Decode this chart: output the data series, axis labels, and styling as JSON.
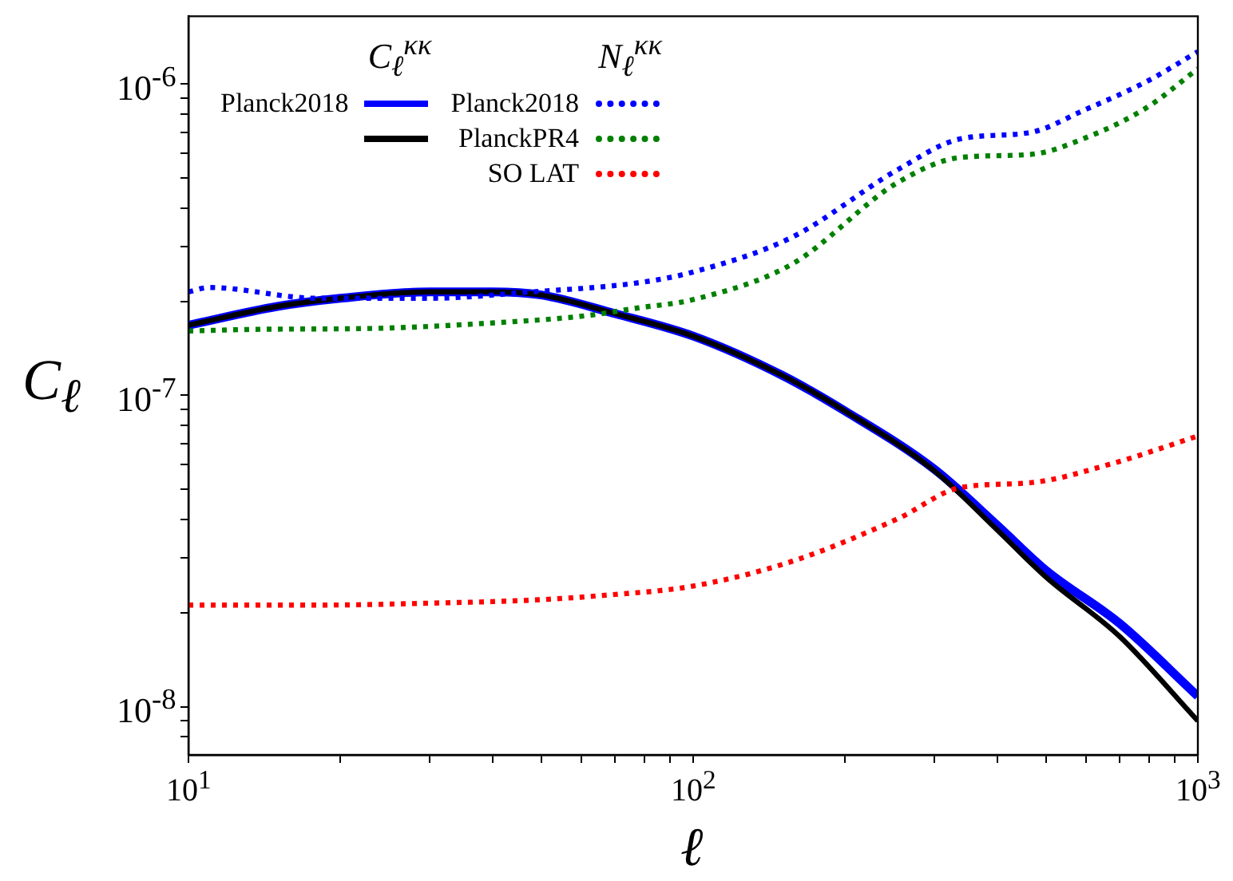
{
  "chart_data": {
    "type": "line",
    "xlabel": "ℓ",
    "ylabel": "C$_{ℓ}$",
    "log": "xy",
    "grid": false,
    "legend": "top left",
    "marker": "none",
    "annotations": [
      "C$_{ℓ}$$^{κκ}$",
      "N$_{ℓ}$$^{κκ}$"
    ],
    "xlim": [
      10,
      1000
    ],
    "ylim": [
      7e-09,
      1.65e-06
    ],
    "xticks": [
      {
        "value": 10,
        "label": "10$^{1}$"
      },
      {
        "value": 20,
        "label": null
      },
      {
        "value": 30,
        "label": null
      },
      {
        "value": 40,
        "label": null
      },
      {
        "value": 50,
        "label": null
      },
      {
        "value": 60,
        "label": null
      },
      {
        "value": 70,
        "label": null
      },
      {
        "value": 80,
        "label": null
      },
      {
        "value": 90,
        "label": null
      },
      {
        "value": 100,
        "label": "10$^{2}$"
      },
      {
        "value": 200,
        "label": null
      },
      {
        "value": 300,
        "label": null
      },
      {
        "value": 400,
        "label": null
      },
      {
        "value": 500,
        "label": null
      },
      {
        "value": 600,
        "label": null
      },
      {
        "value": 700,
        "label": null
      },
      {
        "value": 800,
        "label": null
      },
      {
        "value": 900,
        "label": null
      },
      {
        "value": 1000,
        "label": "10$^{3}$"
      }
    ],
    "yticks": [
      {
        "value": 8e-09,
        "label": null
      },
      {
        "value": 9e-09,
        "label": null
      },
      {
        "value": 1e-08,
        "label": "10$^{-8}$"
      },
      {
        "value": 2e-08,
        "label": null
      },
      {
        "value": 3e-08,
        "label": null
      },
      {
        "value": 4e-08,
        "label": null
      },
      {
        "value": 5e-08,
        "label": null
      },
      {
        "value": 6e-08,
        "label": null
      },
      {
        "value": 7e-08,
        "label": null
      },
      {
        "value": 8e-08,
        "label": null
      },
      {
        "value": 9e-08,
        "label": null
      },
      {
        "value": 1e-07,
        "label": "10$^{-7}$"
      },
      {
        "value": 2e-07,
        "label": null
      },
      {
        "value": 3e-07,
        "label": null
      },
      {
        "value": 4e-07,
        "label": null
      },
      {
        "value": 5e-07,
        "label": null
      },
      {
        "value": 6e-07,
        "label": null
      },
      {
        "value": 7e-07,
        "label": null
      },
      {
        "value": 8e-07,
        "label": null
      },
      {
        "value": 9e-07,
        "label": null
      },
      {
        "value": 1e-06,
        "label": "10$^{-6}$"
      }
    ],
    "series": [
      {
        "name": "Planck2018",
        "color": "#0000ff",
        "line_style": "solid",
        "x": [
          10,
          15,
          20,
          30,
          40,
          50,
          70,
          100,
          150,
          200,
          300,
          400,
          500,
          700,
          1000
        ],
        "values": [
          1.68e-07,
          1.93e-07,
          2.05e-07,
          2.15e-07,
          2.15e-07,
          2.1e-07,
          1.83e-07,
          1.55e-07,
          1.16e-07,
          8.9e-08,
          5.8e-08,
          3.83e-08,
          2.74e-08,
          1.85e-08,
          1.08e-08
        ]
      },
      {
        "color": "#000000",
        "line_style": "solid",
        "x": [
          10,
          15,
          20,
          30,
          40,
          50,
          70,
          100,
          150,
          200,
          300,
          400,
          500,
          700,
          1000
        ],
        "values": [
          1.68e-07,
          1.93e-07,
          2.05e-07,
          2.15e-07,
          2.15e-07,
          2.1e-07,
          1.83e-07,
          1.55e-07,
          1.16e-07,
          8.9e-08,
          5.74e-08,
          3.7e-08,
          2.61e-08,
          1.68e-08,
          9e-09
        ]
      },
      {
        "name": "Planck2018",
        "color": "#0000ff",
        "line_style": "dotted",
        "x": [
          10,
          11,
          18,
          30,
          48,
          78,
          100,
          157,
          254,
          339,
          466,
          593,
          793,
          1000
        ],
        "values": [
          2.15e-07,
          2.22e-07,
          2.05e-07,
          2.05e-07,
          2.15e-07,
          2.3e-07,
          2.49e-07,
          3.22e-07,
          5.3e-07,
          6.67e-07,
          6.99e-07,
          8.22e-07,
          1.02e-06,
          1.27e-06
        ]
      },
      {
        "name": "PlanckPR4",
        "color": "#008000",
        "line_style": "dotted",
        "x": [
          10,
          14,
          23,
          38,
          61,
          78,
          100,
          157,
          254,
          339,
          466,
          593,
          793,
          1000
        ],
        "values": [
          1.61e-07,
          1.63e-07,
          1.64e-07,
          1.7e-07,
          1.8e-07,
          1.91e-07,
          2.03e-07,
          2.64e-07,
          4.82e-07,
          5.81e-07,
          5.94e-07,
          6.67e-07,
          8.41e-07,
          1.12e-06
        ]
      },
      {
        "name": "SO LAT",
        "color": "#ff0000",
        "line_style": "dotted",
        "x": [
          10,
          18,
          30,
          48,
          67,
          100,
          157,
          254,
          339,
          466,
          670,
          1000
        ],
        "values": [
          2.12e-08,
          2.12e-08,
          2.15e-08,
          2.2e-08,
          2.28e-08,
          2.44e-08,
          2.93e-08,
          4.01e-08,
          5.06e-08,
          5.24e-08,
          6.01e-08,
          7.4e-08
        ]
      }
    ]
  }
}
